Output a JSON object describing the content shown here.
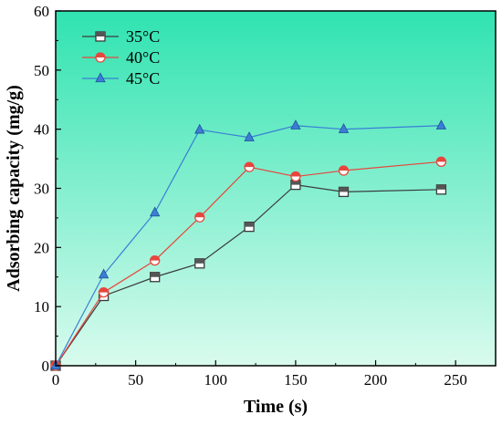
{
  "chart_data": {
    "type": "line",
    "xlabel": "Time (s)",
    "ylabel": "Adsorbing capacity (mg/g)",
    "xlim": [
      0,
      275
    ],
    "ylim": [
      0,
      60
    ],
    "xticks": [
      0,
      50,
      100,
      150,
      200,
      250
    ],
    "yticks": [
      0,
      10,
      20,
      30,
      40,
      50,
      60
    ],
    "background_gradient": [
      "#2fe3b0",
      "#d9fbee"
    ],
    "legend_position": "top-left",
    "x": [
      0,
      30,
      62,
      90,
      121,
      150,
      180,
      241
    ],
    "series": [
      {
        "name": "35°C",
        "marker": "square",
        "color": "#3a3a3a",
        "fill": "#555555",
        "values": [
          0,
          11.8,
          15.0,
          17.3,
          23.5,
          30.6,
          29.4,
          29.8
        ]
      },
      {
        "name": "40°C",
        "marker": "circle",
        "color": "#e8453c",
        "fill": "#e8453c",
        "values": [
          0,
          12.4,
          17.8,
          25.1,
          33.6,
          32.0,
          33.0,
          34.5
        ]
      },
      {
        "name": "45°C",
        "marker": "triangle",
        "color": "#3a7fd5",
        "fill": "#3a7fd5",
        "values": [
          0,
          15.4,
          25.9,
          39.9,
          38.6,
          40.6,
          40.0,
          40.6
        ]
      }
    ]
  }
}
